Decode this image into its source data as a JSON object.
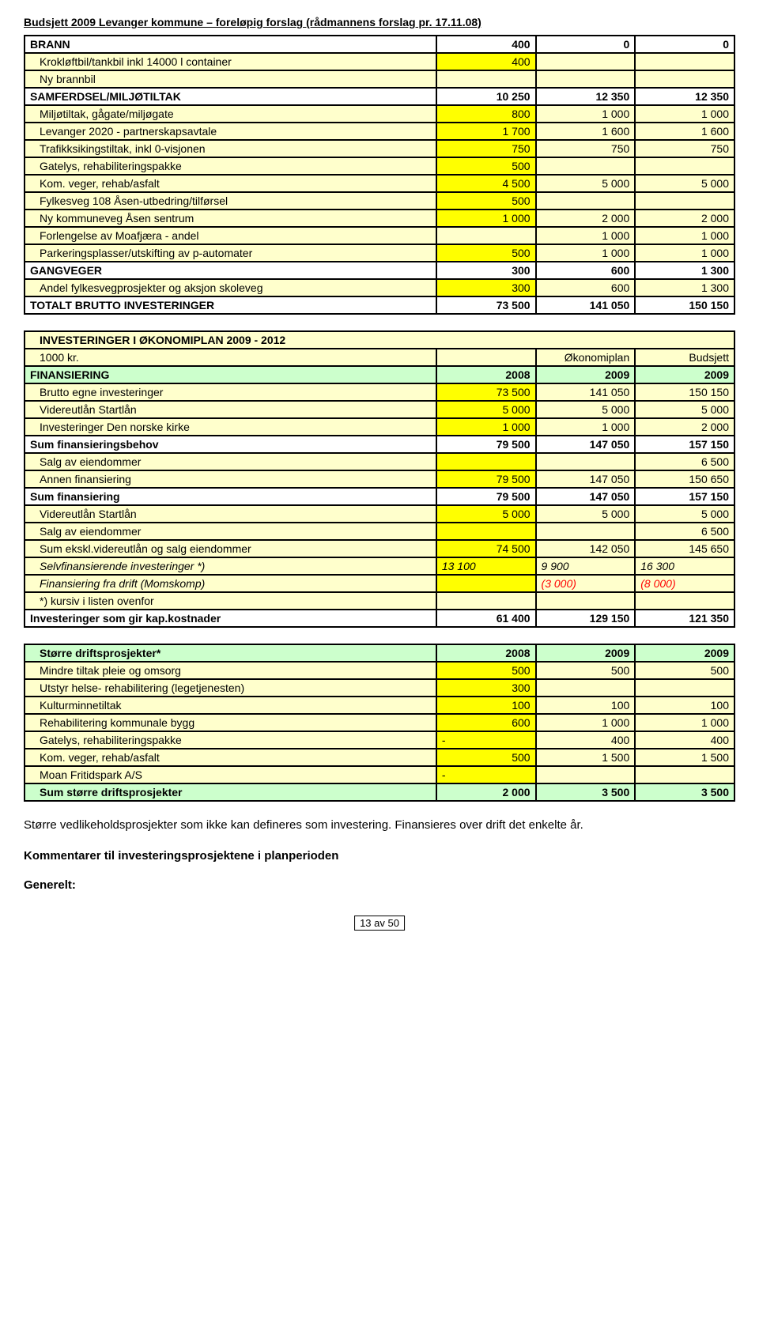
{
  "page_title": "Budsjett 2009 Levanger kommune – foreløpig forslag (rådmannens forslag pr. 17.11.08)",
  "table1": {
    "rows": [
      {
        "cells": [
          {
            "t": "BRANN",
            "cls": "bold white"
          },
          {
            "t": "400",
            "cls": "bold right white"
          },
          {
            "t": "0",
            "cls": "bold right white"
          },
          {
            "t": "0",
            "cls": "bold right white"
          }
        ]
      },
      {
        "cells": [
          {
            "t": "Krokløftbil/tankbil inkl 14000 l container",
            "cls": "cream indent"
          },
          {
            "t": "400",
            "cls": "yellow right"
          },
          {
            "t": "",
            "cls": "cream"
          },
          {
            "t": "",
            "cls": "cream"
          }
        ]
      },
      {
        "cells": [
          {
            "t": "Ny brannbil",
            "cls": "cream indent"
          },
          {
            "t": "",
            "cls": "cream"
          },
          {
            "t": "",
            "cls": "cream"
          },
          {
            "t": "",
            "cls": "cream"
          }
        ]
      },
      {
        "cells": [
          {
            "t": "SAMFERDSEL/MILJØTILTAK",
            "cls": "bold white"
          },
          {
            "t": "10 250",
            "cls": "bold right white"
          },
          {
            "t": "12 350",
            "cls": "bold right white"
          },
          {
            "t": "12 350",
            "cls": "bold right white"
          }
        ]
      },
      {
        "cells": [
          {
            "t": "Miljøtiltak, gågate/miljøgate",
            "cls": "cream indent"
          },
          {
            "t": "800",
            "cls": "yellow right"
          },
          {
            "t": "1 000",
            "cls": "cream right"
          },
          {
            "t": "1 000",
            "cls": "cream right"
          }
        ]
      },
      {
        "cells": [
          {
            "t": "Levanger 2020 - partnerskapsavtale",
            "cls": "cream indent"
          },
          {
            "t": "1 700",
            "cls": "yellow right"
          },
          {
            "t": "1 600",
            "cls": "cream right"
          },
          {
            "t": "1 600",
            "cls": "cream right"
          }
        ]
      },
      {
        "cells": [
          {
            "t": "Trafikksikingstiltak, inkl 0-visjonen",
            "cls": "cream indent"
          },
          {
            "t": "750",
            "cls": "yellow right"
          },
          {
            "t": "750",
            "cls": "cream right"
          },
          {
            "t": "750",
            "cls": "cream right"
          }
        ]
      },
      {
        "cells": [
          {
            "t": "Gatelys, rehabiliteringspakke",
            "cls": "cream indent"
          },
          {
            "t": "500",
            "cls": "yellow right"
          },
          {
            "t": "",
            "cls": "cream"
          },
          {
            "t": "",
            "cls": "cream"
          }
        ]
      },
      {
        "cells": [
          {
            "t": "Kom. veger, rehab/asfalt",
            "cls": "cream indent"
          },
          {
            "t": "4 500",
            "cls": "yellow right"
          },
          {
            "t": "5 000",
            "cls": "cream right"
          },
          {
            "t": "5 000",
            "cls": "cream right"
          }
        ]
      },
      {
        "cells": [
          {
            "t": "Fylkesveg 108 Åsen-utbedring/tilførsel",
            "cls": "cream indent"
          },
          {
            "t": "500",
            "cls": "yellow right"
          },
          {
            "t": "",
            "cls": "cream"
          },
          {
            "t": "",
            "cls": "cream"
          }
        ]
      },
      {
        "cells": [
          {
            "t": "Ny kommuneveg Åsen sentrum",
            "cls": "cream indent"
          },
          {
            "t": "1 000",
            "cls": "yellow right"
          },
          {
            "t": "2 000",
            "cls": "cream right"
          },
          {
            "t": "2 000",
            "cls": "cream right"
          }
        ]
      },
      {
        "cells": [
          {
            "t": "Forlengelse av Moafjæra - andel",
            "cls": "cream indent"
          },
          {
            "t": "",
            "cls": "cream"
          },
          {
            "t": "1 000",
            "cls": "cream right"
          },
          {
            "t": "1 000",
            "cls": "cream right"
          }
        ]
      },
      {
        "cells": [
          {
            "t": "Parkeringsplasser/utskifting av p-automater",
            "cls": "cream indent"
          },
          {
            "t": "500",
            "cls": "yellow right"
          },
          {
            "t": "1 000",
            "cls": "cream right"
          },
          {
            "t": "1 000",
            "cls": "cream right"
          }
        ]
      },
      {
        "cells": [
          {
            "t": "GANGVEGER",
            "cls": "bold white"
          },
          {
            "t": "300",
            "cls": "bold right white"
          },
          {
            "t": "600",
            "cls": "bold right white"
          },
          {
            "t": "1 300",
            "cls": "bold right white"
          }
        ]
      },
      {
        "cells": [
          {
            "t": "Andel fylkesvegprosjekter og aksjon skoleveg",
            "cls": "cream indent"
          },
          {
            "t": "300",
            "cls": "yellow right"
          },
          {
            "t": "600",
            "cls": "cream right"
          },
          {
            "t": "1 300",
            "cls": "cream right"
          }
        ]
      },
      {
        "cells": [
          {
            "t": "TOTALT BRUTTO INVESTERINGER",
            "cls": "bold white"
          },
          {
            "t": "73 500",
            "cls": "bold right white"
          },
          {
            "t": "141 050",
            "cls": "bold right white"
          },
          {
            "t": "150 150",
            "cls": "bold right white"
          }
        ]
      }
    ]
  },
  "table2": {
    "rows": [
      {
        "cells": [
          {
            "t": "INVESTERINGER I  ØKONOMIPLAN 2009 - 2012",
            "cls": "cream bold indent",
            "colspan": 4
          }
        ]
      },
      {
        "cells": [
          {
            "t": "1000 kr.",
            "cls": "cream indent"
          },
          {
            "t": "",
            "cls": "cream"
          },
          {
            "t": "Økonomiplan",
            "cls": "cream right"
          },
          {
            "t": "Budsjett",
            "cls": "cream right"
          }
        ]
      },
      {
        "cells": [
          {
            "t": "FINANSIERING",
            "cls": "green bold"
          },
          {
            "t": "2008",
            "cls": "green bold right"
          },
          {
            "t": "2009",
            "cls": "green bold right"
          },
          {
            "t": "2009",
            "cls": "green bold right"
          }
        ]
      },
      {
        "cells": [
          {
            "t": "Brutto egne investeringer",
            "cls": "cream indent"
          },
          {
            "t": "73 500",
            "cls": "yellow right"
          },
          {
            "t": "141 050",
            "cls": "cream right"
          },
          {
            "t": "150 150",
            "cls": "cream right"
          }
        ]
      },
      {
        "cells": [
          {
            "t": "Videreutlån Startlån",
            "cls": "cream indent"
          },
          {
            "t": "5 000",
            "cls": "yellow right"
          },
          {
            "t": "5 000",
            "cls": "cream right"
          },
          {
            "t": "5 000",
            "cls": "cream right"
          }
        ]
      },
      {
        "cells": [
          {
            "t": "Investeringer Den norske kirke",
            "cls": "cream indent"
          },
          {
            "t": "1 000",
            "cls": "yellow right"
          },
          {
            "t": "1 000",
            "cls": "cream right"
          },
          {
            "t": "2 000",
            "cls": "cream right"
          }
        ]
      },
      {
        "cells": [
          {
            "t": "Sum finansieringsbehov",
            "cls": "bold white"
          },
          {
            "t": "79 500",
            "cls": "bold right white"
          },
          {
            "t": "147 050",
            "cls": "bold right white"
          },
          {
            "t": "157 150",
            "cls": "bold right white"
          }
        ]
      },
      {
        "cells": [
          {
            "t": "Salg av eiendommer",
            "cls": "cream indent"
          },
          {
            "t": "",
            "cls": "yellow"
          },
          {
            "t": "",
            "cls": "cream"
          },
          {
            "t": "6 500",
            "cls": "cream right"
          }
        ]
      },
      {
        "cells": [
          {
            "t": "Annen finansiering",
            "cls": "cream indent"
          },
          {
            "t": "79 500",
            "cls": "yellow right"
          },
          {
            "t": "147 050",
            "cls": "cream right"
          },
          {
            "t": "150 650",
            "cls": "cream right"
          }
        ]
      },
      {
        "cells": [
          {
            "t": "Sum finansiering",
            "cls": "bold white"
          },
          {
            "t": "79 500",
            "cls": "bold right white"
          },
          {
            "t": "147 050",
            "cls": "bold right white"
          },
          {
            "t": "157 150",
            "cls": "bold right white"
          }
        ]
      },
      {
        "cells": [
          {
            "t": "Videreutlån Startlån",
            "cls": "cream indent"
          },
          {
            "t": "5 000",
            "cls": "yellow right"
          },
          {
            "t": "5 000",
            "cls": "cream right"
          },
          {
            "t": "5 000",
            "cls": "cream right"
          }
        ]
      },
      {
        "cells": [
          {
            "t": "Salg av eiendommer",
            "cls": "cream indent"
          },
          {
            "t": "",
            "cls": "yellow"
          },
          {
            "t": "",
            "cls": "cream"
          },
          {
            "t": "6 500",
            "cls": "cream right"
          }
        ]
      },
      {
        "cells": [
          {
            "t": "Sum ekskl.videreutlån og salg eiendommer",
            "cls": "cream indent"
          },
          {
            "t": "74 500",
            "cls": "yellow right"
          },
          {
            "t": "142 050",
            "cls": "cream right"
          },
          {
            "t": "145 650",
            "cls": "cream right"
          }
        ]
      },
      {
        "cells": [
          {
            "t": "Selvfinansierende investeringer *)",
            "cls": "cream italic indent"
          },
          {
            "t": "13 100",
            "cls": "yellow italic"
          },
          {
            "t": "9 900",
            "cls": "cream italic"
          },
          {
            "t": "16 300",
            "cls": "cream italic"
          }
        ]
      },
      {
        "cells": [
          {
            "t": " Finansiering fra drift (Momskomp)",
            "cls": "cream italic indent"
          },
          {
            "t": "",
            "cls": "yellow"
          },
          {
            "t": "(3 000)",
            "cls": "cream italic red"
          },
          {
            "t": "(8 000)",
            "cls": "cream italic red"
          }
        ]
      },
      {
        "cells": [
          {
            "t": "*)  kursiv i listen ovenfor",
            "cls": "cream indent"
          },
          {
            "t": "",
            "cls": "cream"
          },
          {
            "t": "",
            "cls": "cream"
          },
          {
            "t": "",
            "cls": "cream"
          }
        ]
      },
      {
        "cells": [
          {
            "t": "Investeringer som gir kap.kostnader",
            "cls": "bold white"
          },
          {
            "t": "61 400",
            "cls": "bold right white"
          },
          {
            "t": "129 150",
            "cls": "bold right white"
          },
          {
            "t": "121 350",
            "cls": "bold right white"
          }
        ]
      }
    ]
  },
  "table3": {
    "rows": [
      {
        "cells": [
          {
            "t": "Større driftsprosjekter*",
            "cls": "green bold indent"
          },
          {
            "t": "2008",
            "cls": "green bold right"
          },
          {
            "t": "2009",
            "cls": "green bold right"
          },
          {
            "t": "2009",
            "cls": "green bold right"
          }
        ]
      },
      {
        "cells": [
          {
            "t": "Mindre tiltak pleie og omsorg",
            "cls": "cream indent"
          },
          {
            "t": "500",
            "cls": "yellow right"
          },
          {
            "t": "500",
            "cls": "cream right"
          },
          {
            "t": "500",
            "cls": "cream right"
          }
        ]
      },
      {
        "cells": [
          {
            "t": "Utstyr helse- rehabilitering (legetjenesten)",
            "cls": "cream indent"
          },
          {
            "t": "300",
            "cls": "yellow right"
          },
          {
            "t": "",
            "cls": "cream"
          },
          {
            "t": "",
            "cls": "cream"
          }
        ]
      },
      {
        "cells": [
          {
            "t": "Kulturminnetiltak",
            "cls": "cream indent"
          },
          {
            "t": "100",
            "cls": "yellow right"
          },
          {
            "t": "100",
            "cls": "cream right"
          },
          {
            "t": "100",
            "cls": "cream right"
          }
        ]
      },
      {
        "cells": [
          {
            "t": "Rehabilitering kommunale bygg",
            "cls": "cream indent"
          },
          {
            "t": "600",
            "cls": "yellow right"
          },
          {
            "t": "1 000",
            "cls": "cream right"
          },
          {
            "t": "1 000",
            "cls": "cream right"
          }
        ]
      },
      {
        "cells": [
          {
            "t": "Gatelys, rehabiliteringspakke",
            "cls": "cream indent"
          },
          {
            "t": "-",
            "cls": "yellow"
          },
          {
            "t": "400",
            "cls": "cream right"
          },
          {
            "t": "400",
            "cls": "cream right"
          }
        ]
      },
      {
        "cells": [
          {
            "t": "Kom. veger, rehab/asfalt",
            "cls": "cream indent"
          },
          {
            "t": "500",
            "cls": "yellow right"
          },
          {
            "t": "1 500",
            "cls": "cream right"
          },
          {
            "t": "1 500",
            "cls": "cream right"
          }
        ]
      },
      {
        "cells": [
          {
            "t": "Moan Fritidspark A/S",
            "cls": "cream indent"
          },
          {
            "t": "-",
            "cls": "yellow"
          },
          {
            "t": "",
            "cls": "cream"
          },
          {
            "t": "",
            "cls": "cream"
          }
        ]
      },
      {
        "cells": [
          {
            "t": "Sum større driftsprosjekter",
            "cls": "green bold indent"
          },
          {
            "t": "2 000",
            "cls": "green bold right"
          },
          {
            "t": "3 500",
            "cls": "green bold right"
          },
          {
            "t": "3 500",
            "cls": "green bold right"
          }
        ]
      }
    ]
  },
  "footer_text": "Større vedlikeholdsprosjekter som ikke kan defineres som investering. Finansieres over drift det enkelte år.",
  "footer_heading1": "Kommentarer til investeringsprosjektene i planperioden",
  "footer_heading2": "Generelt:",
  "page_number": "13 av 50"
}
